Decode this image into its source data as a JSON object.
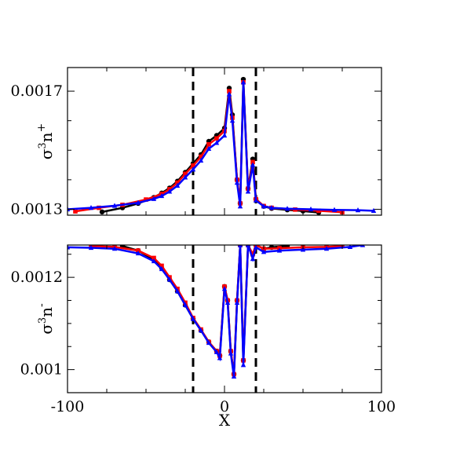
{
  "chart_data": [
    {
      "panel": "top",
      "type": "scatter",
      "ylabel_base": "σ",
      "ylabel_sup": "3",
      "ylabel_var": "n",
      "ylabel_sign": "+",
      "xlim": [
        -100,
        100
      ],
      "ylim": [
        0.00128,
        0.00178
      ],
      "yticks": [
        0.0013,
        0.0017
      ],
      "ytick_labels": [
        "0.0013",
        "0.0017"
      ],
      "vlines": [
        -20,
        20
      ],
      "series": [
        {
          "color": "#000000",
          "marker": "circle",
          "x": [
            -78,
            -65,
            -55,
            -45,
            -40,
            -35,
            -30,
            -25,
            -20,
            -15,
            -10,
            -5,
            0,
            3,
            5,
            8,
            10,
            12,
            15,
            18,
            20,
            25,
            30,
            40,
            50,
            60
          ],
          "y": [
            0.001291,
            0.001305,
            0.00132,
            0.00134,
            0.001355,
            0.001372,
            0.001395,
            0.001425,
            0.001455,
            0.001485,
            0.00153,
            0.00155,
            0.001575,
            0.00171,
            0.00162,
            0.0014,
            0.00132,
            0.00174,
            0.00137,
            0.00147,
            0.001335,
            0.00131,
            0.001303,
            0.001298,
            0.001294,
            0.001289
          ]
        },
        {
          "color": "#ff0000",
          "marker": "square",
          "x": [
            -95,
            -80,
            -65,
            -50,
            -40,
            -35,
            -30,
            -25,
            -20,
            -15,
            -10,
            -5,
            0,
            3,
            5,
            8,
            10,
            12,
            15,
            18,
            20,
            25,
            30,
            45,
            60,
            75
          ],
          "y": [
            0.001293,
            0.001305,
            0.001315,
            0.001333,
            0.001352,
            0.001368,
            0.00139,
            0.00142,
            0.001448,
            0.001478,
            0.00152,
            0.00154,
            0.001565,
            0.0017,
            0.00161,
            0.0014,
            0.00132,
            0.00173,
            0.00137,
            0.00146,
            0.001334,
            0.001311,
            0.001305,
            0.001299,
            0.001295,
            0.00129
          ]
        },
        {
          "color": "#0000ff",
          "marker": "triangle",
          "x": [
            -100,
            -85,
            -70,
            -55,
            -45,
            -40,
            -35,
            -30,
            -25,
            -20,
            -15,
            -10,
            -5,
            0,
            3,
            5,
            8,
            10,
            12,
            15,
            18,
            20,
            25,
            30,
            40,
            55,
            70,
            85,
            95
          ],
          "y": [
            0.0013,
            0.001305,
            0.001312,
            0.001322,
            0.001335,
            0.001345,
            0.00136,
            0.00138,
            0.001408,
            0.001435,
            0.001465,
            0.001505,
            0.001525,
            0.00155,
            0.00169,
            0.0016,
            0.00139,
            0.00131,
            0.00173,
            0.00136,
            0.00145,
            0.00133,
            0.00131,
            0.001305,
            0.001302,
            0.0013,
            0.001298,
            0.001297,
            0.001295
          ]
        }
      ]
    },
    {
      "panel": "bottom",
      "type": "scatter",
      "ylabel_base": "σ",
      "ylabel_sup": "3",
      "ylabel_var": "n",
      "ylabel_sign": "-",
      "xlabel": "X",
      "xlim": [
        -100,
        100
      ],
      "ylim": [
        0.00095,
        0.00127
      ],
      "yticks": [
        0.001,
        0.0012
      ],
      "ytick_labels": [
        "0.001",
        "0.0012"
      ],
      "xticks": [
        -100,
        0,
        100
      ],
      "xtick_labels": [
        "-100",
        "0",
        "100"
      ],
      "vlines": [
        -20,
        20
      ],
      "series": [
        {
          "color": "#000000",
          "marker": "circle",
          "x": [
            -65,
            -55,
            -45,
            -40,
            -35,
            -30,
            -25,
            -20,
            -15,
            -10,
            -5,
            -3,
            0,
            2,
            4,
            6,
            8,
            10,
            12,
            15,
            18,
            20,
            25,
            30,
            40
          ],
          "y": [
            0.001268,
            0.001258,
            0.001238,
            0.00122,
            0.001195,
            0.00117,
            0.00114,
            0.00111,
            0.001085,
            0.00106,
            0.00104,
            0.00103,
            0.00118,
            0.00115,
            0.00104,
            0.00099,
            0.00115,
            0.00127,
            0.00102,
            0.00127,
            0.00125,
            0.00127,
            0.001262,
            0.001265,
            0.001268
          ]
        },
        {
          "color": "#ff0000",
          "marker": "square",
          "x": [
            -85,
            -70,
            -55,
            -45,
            -40,
            -35,
            -30,
            -25,
            -20,
            -15,
            -10,
            -5,
            -3,
            0,
            2,
            4,
            6,
            8,
            10,
            12,
            15,
            18,
            20,
            25,
            35,
            50,
            65,
            75
          ],
          "y": [
            0.001268,
            0.001266,
            0.001258,
            0.001242,
            0.001225,
            0.0012,
            0.001175,
            0.001145,
            0.001112,
            0.001087,
            0.00106,
            0.00104,
            0.00103,
            0.00118,
            0.00115,
            0.00104,
            0.00099,
            0.00115,
            0.00127,
            0.00102,
            0.00127,
            0.00125,
            0.00127,
            0.001262,
            0.001263,
            0.001265,
            0.001266,
            0.001268
          ]
        },
        {
          "color": "#0000ff",
          "marker": "triangle",
          "x": [
            -100,
            -85,
            -70,
            -55,
            -45,
            -40,
            -35,
            -30,
            -25,
            -20,
            -15,
            -10,
            -5,
            -3,
            0,
            2,
            4,
            6,
            8,
            10,
            12,
            15,
            18,
            20,
            25,
            35,
            50,
            65,
            80,
            88
          ],
          "y": [
            0.001265,
            0.001264,
            0.001262,
            0.001252,
            0.001235,
            0.001218,
            0.001195,
            0.00117,
            0.00114,
            0.00111,
            0.001085,
            0.001058,
            0.001038,
            0.001025,
            0.001175,
            0.001145,
            0.001035,
            0.000985,
            0.001145,
            0.00127,
            0.00101,
            0.00127,
            0.00124,
            0.001265,
            0.001255,
            0.001258,
            0.00126,
            0.001262,
            0.001266,
            0.00127
          ]
        }
      ]
    }
  ]
}
